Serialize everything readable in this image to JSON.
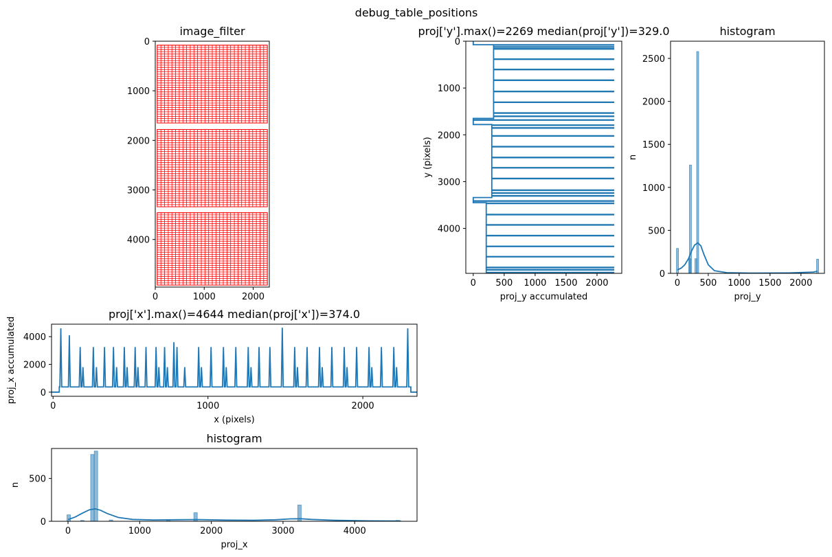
{
  "suptitle": "debug_table_positions",
  "chart_data": [
    {
      "id": "image_filter",
      "type": "image",
      "title": "image_filter",
      "xticks": [
        0,
        1000,
        2000
      ],
      "yticks": [
        0,
        1000,
        2000,
        3000,
        4000
      ],
      "xlim": [
        0,
        2330
      ],
      "ylim": [
        4960,
        0
      ],
      "table_color": "#ff0000",
      "tables": [
        {
          "x0": 40,
          "x1": 2290,
          "y0": 80,
          "y1": 1650
        },
        {
          "x0": 40,
          "x1": 2290,
          "y0": 1780,
          "y1": 3340
        },
        {
          "x0": 40,
          "x1": 2290,
          "y0": 3460,
          "y1": 4920
        }
      ]
    },
    {
      "id": "proj_y",
      "type": "line",
      "title": "proj['y'].max()=2269 median(proj['y'])=329.0",
      "xlabel": "proj_y accumulated",
      "ylabel": "y (pixels)",
      "xticks": [
        0,
        500,
        1000,
        1500,
        2000
      ],
      "yticks": [
        0,
        1000,
        2000,
        3000,
        4000
      ],
      "xlim": [
        -120,
        2400
      ],
      "ylim": [
        4960,
        0
      ],
      "baseline_segments": [
        {
          "y0": 0,
          "y1": 75,
          "value": 0
        },
        {
          "y0": 75,
          "y1": 1650,
          "value": 329
        },
        {
          "y0": 1650,
          "y1": 1780,
          "value": 0
        },
        {
          "y0": 1780,
          "y1": 3340,
          "value": 300
        },
        {
          "y0": 3340,
          "y1": 3450,
          "value": 0
        },
        {
          "y0": 3450,
          "y1": 4960,
          "value": 210
        }
      ],
      "spikes_y": [
        75,
        120,
        160,
        380,
        600,
        830,
        1070,
        1300,
        1530,
        1600,
        1680,
        1790,
        1850,
        2020,
        2250,
        2480,
        2700,
        2930,
        3180,
        3240,
        3300,
        3410,
        3460,
        3700,
        3920,
        4150,
        4380,
        4600,
        4830,
        4880,
        4940
      ],
      "spike_value": 2269
    },
    {
      "id": "hist_y",
      "type": "histogram",
      "title": "histogram",
      "xlabel": "proj_y",
      "ylabel": "n",
      "xticks": [
        0,
        500,
        1000,
        1500,
        2000
      ],
      "yticks": [
        0,
        500,
        1000,
        1500,
        2000,
        2500
      ],
      "xlim": [
        -110,
        2380
      ],
      "ylim": [
        0,
        2700
      ],
      "bars": [
        {
          "x": 2,
          "n": 290
        },
        {
          "x": 200,
          "n": 170
        },
        {
          "x": 212,
          "n": 1260
        },
        {
          "x": 300,
          "n": 170
        },
        {
          "x": 329,
          "n": 2580
        },
        {
          "x": 2269,
          "n": 165
        }
      ],
      "kde_x": [
        0,
        60,
        120,
        180,
        230,
        280,
        330,
        380,
        430,
        500,
        600,
        800,
        1200,
        1800,
        2200,
        2269
      ],
      "kde_y": [
        40,
        60,
        100,
        170,
        260,
        330,
        355,
        320,
        220,
        100,
        30,
        8,
        3,
        5,
        15,
        25
      ]
    },
    {
      "id": "proj_x",
      "type": "line",
      "title": "proj['x'].max()=4644 median(proj['x'])=374.0",
      "xlabel": "x (pixels)",
      "ylabel": "proj_x accumulated",
      "xticks": [
        0,
        1000,
        2000
      ],
      "yticks": [
        0,
        2000,
        4000
      ],
      "xlim": [
        -10,
        2350
      ],
      "ylim": [
        -300,
        4900
      ],
      "baseline": 374,
      "edges": [
        {
          "from": 0,
          "to": 40,
          "value": 0
        },
        {
          "from": 2310,
          "to": 2350,
          "value": 0
        }
      ],
      "peaks": [
        {
          "x": 50,
          "v": 4600
        },
        {
          "x": 105,
          "v": 4100
        },
        {
          "x": 175,
          "v": 3250
        },
        {
          "x": 193,
          "v": 1800
        },
        {
          "x": 260,
          "v": 3250
        },
        {
          "x": 280,
          "v": 1800
        },
        {
          "x": 332,
          "v": 3250
        },
        {
          "x": 390,
          "v": 3250
        },
        {
          "x": 410,
          "v": 1800
        },
        {
          "x": 460,
          "v": 3250
        },
        {
          "x": 478,
          "v": 1800
        },
        {
          "x": 530,
          "v": 3250
        },
        {
          "x": 548,
          "v": 1800
        },
        {
          "x": 600,
          "v": 3250
        },
        {
          "x": 665,
          "v": 3250
        },
        {
          "x": 683,
          "v": 1800
        },
        {
          "x": 720,
          "v": 3250
        },
        {
          "x": 738,
          "v": 1800
        },
        {
          "x": 780,
          "v": 3600
        },
        {
          "x": 800,
          "v": 3250
        },
        {
          "x": 850,
          "v": 1800
        },
        {
          "x": 940,
          "v": 3250
        },
        {
          "x": 958,
          "v": 1800
        },
        {
          "x": 1020,
          "v": 3250
        },
        {
          "x": 1100,
          "v": 3250
        },
        {
          "x": 1118,
          "v": 1800
        },
        {
          "x": 1180,
          "v": 3250
        },
        {
          "x": 1260,
          "v": 3250
        },
        {
          "x": 1278,
          "v": 1800
        },
        {
          "x": 1330,
          "v": 3250
        },
        {
          "x": 1400,
          "v": 3250
        },
        {
          "x": 1480,
          "v": 4644
        },
        {
          "x": 1560,
          "v": 3250
        },
        {
          "x": 1578,
          "v": 1800
        },
        {
          "x": 1640,
          "v": 3250
        },
        {
          "x": 1720,
          "v": 3250
        },
        {
          "x": 1738,
          "v": 1800
        },
        {
          "x": 1800,
          "v": 3250
        },
        {
          "x": 1880,
          "v": 3250
        },
        {
          "x": 1898,
          "v": 1800
        },
        {
          "x": 1960,
          "v": 3250
        },
        {
          "x": 2040,
          "v": 3250
        },
        {
          "x": 2058,
          "v": 1800
        },
        {
          "x": 2120,
          "v": 3250
        },
        {
          "x": 2200,
          "v": 3250
        },
        {
          "x": 2218,
          "v": 1800
        },
        {
          "x": 2290,
          "v": 4600
        }
      ]
    },
    {
      "id": "hist_x",
      "type": "histogram",
      "title": "histogram",
      "xlabel": "proj_x",
      "ylabel": "n",
      "xticks": [
        0,
        1000,
        2000,
        3000,
        4000
      ],
      "yticks": [
        0,
        500
      ],
      "xlim": [
        -230,
        4870
      ],
      "ylim": [
        0,
        850
      ],
      "bars": [
        {
          "x": 10,
          "n": 75
        },
        {
          "x": 200,
          "n": 10
        },
        {
          "x": 340,
          "n": 780
        },
        {
          "x": 390,
          "n": 820
        },
        {
          "x": 600,
          "n": 15
        },
        {
          "x": 1400,
          "n": 20
        },
        {
          "x": 1780,
          "n": 100
        },
        {
          "x": 3230,
          "n": 190
        },
        {
          "x": 4600,
          "n": 10
        }
      ],
      "kde_x": [
        0,
        100,
        200,
        300,
        380,
        450,
        550,
        700,
        900,
        1200,
        1500,
        1800,
        2200,
        2600,
        2900,
        3100,
        3250,
        3400,
        3700,
        4200,
        4644
      ],
      "kde_y": [
        20,
        50,
        95,
        135,
        145,
        130,
        90,
        45,
        22,
        15,
        18,
        20,
        14,
        12,
        18,
        28,
        30,
        22,
        12,
        5,
        3
      ]
    }
  ]
}
